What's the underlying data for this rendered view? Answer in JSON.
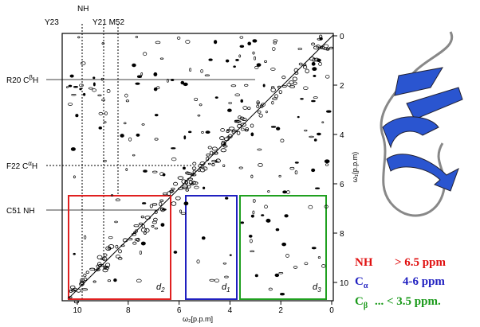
{
  "top_labels": [
    "NH",
    "Y23",
    "Y21 M52"
  ],
  "left_labels": [
    {
      "text": "R20 C",
      "sup": "β",
      "tail": "H"
    },
    {
      "text": "F22 C",
      "sup": "α",
      "tail": "H"
    },
    {
      "text": "C51  NH"
    }
  ],
  "x_axis": {
    "ticks": [
      10,
      8,
      6,
      4,
      2,
      0
    ],
    "label": "ω₂[p.p.m]"
  },
  "y_axis": {
    "ticks": [
      0,
      2,
      4,
      6,
      8,
      10
    ],
    "label": "ω₁(p.p.m)"
  },
  "regions": [
    {
      "name": "d",
      "sub": "2"
    },
    {
      "name": "d",
      "sub": "1"
    },
    {
      "name": "d",
      "sub": "3"
    }
  ],
  "legend": [
    {
      "label": "NH",
      "range": "> 6.5 ppm"
    },
    {
      "label": "C",
      "sub": "α",
      "range": "4-6 ppm"
    },
    {
      "label": "C",
      "sub": "β",
      "range": "...  <  3.5 ppm."
    }
  ]
}
